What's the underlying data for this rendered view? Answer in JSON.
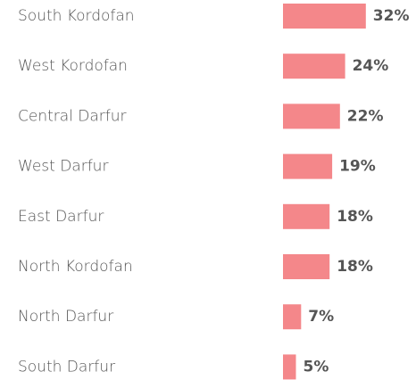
{
  "chart_data": {
    "type": "bar",
    "orientation": "horizontal",
    "categories": [
      "South Kordofan",
      "West Kordofan",
      "Central Darfur",
      "West Darfur",
      "East Darfur",
      "North Kordofan",
      "North Darfur",
      "South Darfur"
    ],
    "values": [
      32,
      24,
      22,
      19,
      18,
      18,
      7,
      5
    ],
    "value_labels": [
      "32%",
      "24%",
      "22%",
      "19%",
      "18%",
      "18%",
      "7%",
      "5%"
    ],
    "color": "#f4878a"
  }
}
